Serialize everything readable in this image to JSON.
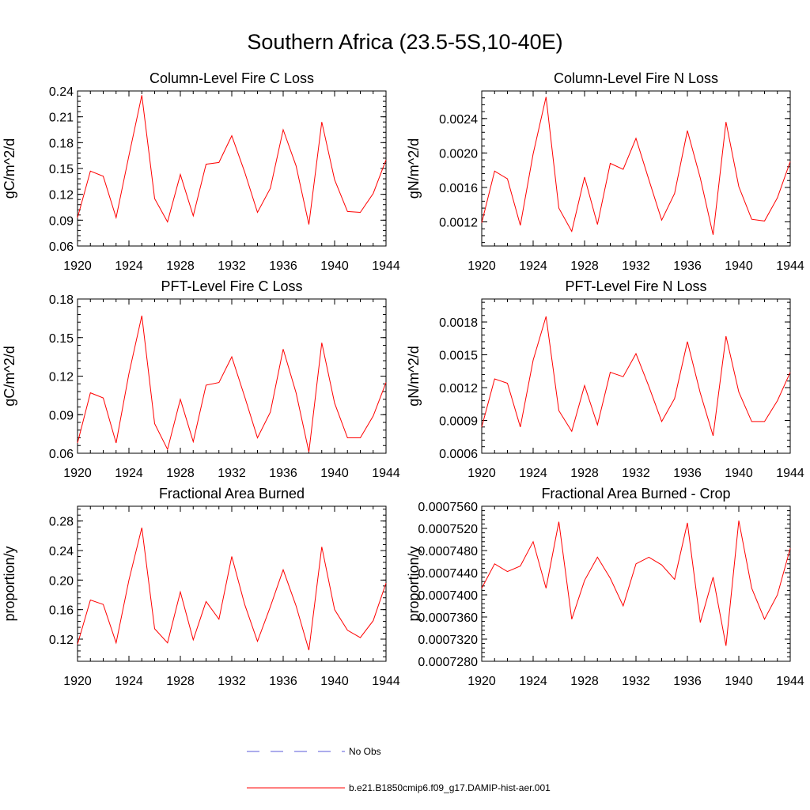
{
  "page_title": "Southern Africa (23.5-5S,10-40E)",
  "colors": {
    "model": "#ff0000",
    "obs": "#5a5ad8",
    "axis": "#000000"
  },
  "legend": {
    "obs_label": "No Obs",
    "model_label": "b.e21.B1850cmip6.f09_g17.DAMIP-hist-aer.001"
  },
  "chart_data": [
    {
      "type": "line",
      "title": "Column-Level Fire C Loss",
      "ylabel": "gC/m^2/d",
      "xlim": [
        1920,
        1944
      ],
      "ylim": [
        0.06,
        0.24
      ],
      "xticks": [
        "1920",
        "1924",
        "1928",
        "1932",
        "1936",
        "1940",
        "1944"
      ],
      "yticks": [
        "0.06",
        "0.09",
        "0.12",
        "0.15",
        "0.18",
        "0.21",
        "0.24"
      ],
      "x": [
        1920,
        1921,
        1922,
        1923,
        1924,
        1925,
        1926,
        1927,
        1928,
        1929,
        1930,
        1931,
        1932,
        1933,
        1934,
        1935,
        1936,
        1937,
        1938,
        1939,
        1940,
        1941,
        1942,
        1943,
        1944
      ],
      "series": [
        {
          "name": "b.e21.B1850cmip6.f09_g17.DAMIP-hist-aer.001",
          "values": [
            0.093,
            0.147,
            0.141,
            0.093,
            0.165,
            0.235,
            0.115,
            0.088,
            0.143,
            0.095,
            0.155,
            0.157,
            0.188,
            0.146,
            0.099,
            0.127,
            0.195,
            0.153,
            0.085,
            0.204,
            0.137,
            0.1,
            0.099,
            0.121,
            0.16
          ]
        }
      ]
    },
    {
      "type": "line",
      "title": "Column-Level Fire N Loss",
      "ylabel": "gN/m^2/d",
      "xlim": [
        1920,
        1944
      ],
      "ylim": [
        0.00092,
        0.00272
      ],
      "xticks": [
        "1920",
        "1924",
        "1928",
        "1932",
        "1936",
        "1940",
        "1944"
      ],
      "yticks": [
        "0.0012",
        "0.0016",
        "0.0020",
        "0.0024"
      ],
      "x": [
        1920,
        1921,
        1922,
        1923,
        1924,
        1925,
        1926,
        1927,
        1928,
        1929,
        1930,
        1931,
        1932,
        1933,
        1934,
        1935,
        1936,
        1937,
        1938,
        1939,
        1940,
        1941,
        1942,
        1943,
        1944
      ],
      "series": [
        {
          "name": "b.e21.B1850cmip6.f09_g17.DAMIP-hist-aer.001",
          "values": [
            0.00119,
            0.00179,
            0.0017,
            0.00116,
            0.00199,
            0.00265,
            0.00136,
            0.00109,
            0.00172,
            0.00117,
            0.00188,
            0.00181,
            0.00217,
            0.00169,
            0.00122,
            0.00153,
            0.00226,
            0.00171,
            0.00105,
            0.00236,
            0.00161,
            0.00123,
            0.00121,
            0.00148,
            0.0019
          ]
        }
      ]
    },
    {
      "type": "line",
      "title": "PFT-Level Fire C Loss",
      "ylabel": "gC/m^2/d",
      "xlim": [
        1920,
        1944
      ],
      "ylim": [
        0.06,
        0.18
      ],
      "xticks": [
        "1920",
        "1924",
        "1928",
        "1932",
        "1936",
        "1940",
        "1944"
      ],
      "yticks": [
        "0.06",
        "0.09",
        "0.12",
        "0.15",
        "0.18"
      ],
      "x": [
        1920,
        1921,
        1922,
        1923,
        1924,
        1925,
        1926,
        1927,
        1928,
        1929,
        1930,
        1931,
        1932,
        1933,
        1934,
        1935,
        1936,
        1937,
        1938,
        1939,
        1940,
        1941,
        1942,
        1943,
        1944
      ],
      "series": [
        {
          "name": "b.e21.B1850cmip6.f09_g17.DAMIP-hist-aer.001",
          "values": [
            0.068,
            0.107,
            0.103,
            0.068,
            0.122,
            0.167,
            0.083,
            0.063,
            0.102,
            0.069,
            0.113,
            0.115,
            0.135,
            0.104,
            0.072,
            0.092,
            0.141,
            0.107,
            0.061,
            0.146,
            0.099,
            0.072,
            0.072,
            0.089,
            0.115
          ]
        }
      ]
    },
    {
      "type": "line",
      "title": "PFT-Level Fire N Loss",
      "ylabel": "gN/m^2/d",
      "xlim": [
        1920,
        1944
      ],
      "ylim": [
        0.0006,
        0.00201
      ],
      "xticks": [
        "1920",
        "1924",
        "1928",
        "1932",
        "1936",
        "1940",
        "1944"
      ],
      "yticks": [
        "0.0006",
        "0.0009",
        "0.0012",
        "0.0015",
        "0.0018"
      ],
      "x": [
        1920,
        1921,
        1922,
        1923,
        1924,
        1925,
        1926,
        1927,
        1928,
        1929,
        1930,
        1931,
        1932,
        1933,
        1934,
        1935,
        1936,
        1937,
        1938,
        1939,
        1940,
        1941,
        1942,
        1943,
        1944
      ],
      "series": [
        {
          "name": "b.e21.B1850cmip6.f09_g17.DAMIP-hist-aer.001",
          "values": [
            0.00084,
            0.00128,
            0.00124,
            0.00084,
            0.00145,
            0.00185,
            0.00099,
            0.0008,
            0.00122,
            0.00086,
            0.00134,
            0.0013,
            0.00151,
            0.00121,
            0.00089,
            0.0011,
            0.00162,
            0.00115,
            0.00076,
            0.00167,
            0.00116,
            0.00089,
            0.00089,
            0.00108,
            0.00134
          ]
        }
      ]
    },
    {
      "type": "line",
      "title": "Fractional Area Burned",
      "ylabel": "proportion/y",
      "xlim": [
        1920,
        1944
      ],
      "ylim": [
        0.09,
        0.3
      ],
      "xticks": [
        "1920",
        "1924",
        "1928",
        "1932",
        "1936",
        "1940",
        "1944"
      ],
      "yticks": [
        "0.12",
        "0.16",
        "0.20",
        "0.24",
        "0.28"
      ],
      "x": [
        1920,
        1921,
        1922,
        1923,
        1924,
        1925,
        1926,
        1927,
        1928,
        1929,
        1930,
        1931,
        1932,
        1933,
        1934,
        1935,
        1936,
        1937,
        1938,
        1939,
        1940,
        1941,
        1942,
        1943,
        1944
      ],
      "series": [
        {
          "name": "b.e21.B1850cmip6.f09_g17.DAMIP-hist-aer.001",
          "values": [
            0.113,
            0.173,
            0.167,
            0.115,
            0.2,
            0.271,
            0.134,
            0.115,
            0.184,
            0.119,
            0.171,
            0.147,
            0.232,
            0.167,
            0.117,
            0.164,
            0.214,
            0.165,
            0.105,
            0.245,
            0.16,
            0.132,
            0.122,
            0.145,
            0.196
          ]
        }
      ]
    },
    {
      "type": "line",
      "title": "Fractional Area Burned - Crop",
      "ylabel": "proportion/y",
      "xlim": [
        1920,
        1944
      ],
      "ylim": [
        0.000728,
        0.000756
      ],
      "xticks": [
        "1920",
        "1924",
        "1928",
        "1932",
        "1936",
        "1940",
        "1944"
      ],
      "yticks": [
        "0.0007280",
        "0.0007320",
        "0.0007360",
        "0.0007400",
        "0.0007440",
        "0.0007480",
        "0.0007520",
        "0.0007560"
      ],
      "x": [
        1920,
        1921,
        1922,
        1923,
        1924,
        1925,
        1926,
        1927,
        1928,
        1929,
        1930,
        1931,
        1932,
        1933,
        1934,
        1935,
        1936,
        1937,
        1938,
        1939,
        1940,
        1941,
        1942,
        1943,
        1944
      ],
      "series": [
        {
          "name": "b.e21.B1850cmip6.f09_g17.DAMIP-hist-aer.001",
          "values": [
            0.0007412,
            0.0007456,
            0.0007442,
            0.0007452,
            0.0007496,
            0.0007412,
            0.0007532,
            0.0007356,
            0.0007426,
            0.0007468,
            0.000743,
            0.000738,
            0.0007456,
            0.0007468,
            0.0007454,
            0.0007428,
            0.000753,
            0.000735,
            0.0007432,
            0.0007308,
            0.0007534,
            0.0007412,
            0.0007356,
            0.00074,
            0.0007484
          ]
        }
      ]
    }
  ]
}
